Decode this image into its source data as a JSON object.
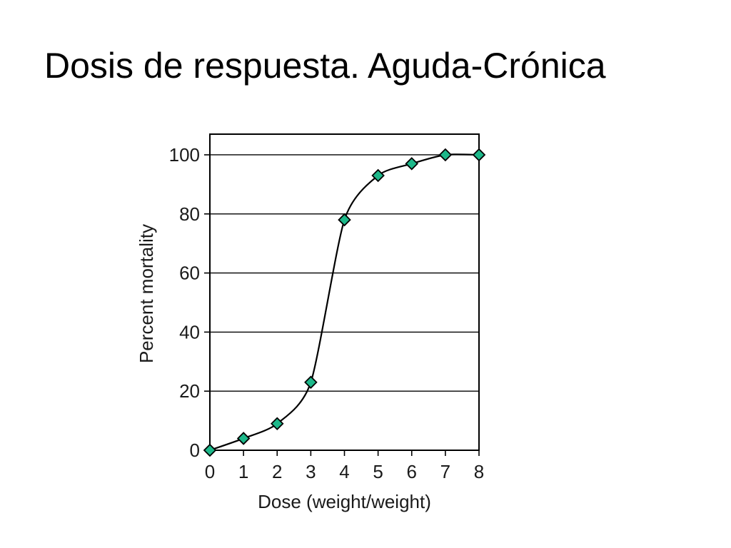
{
  "slide": {
    "title": "Dosis de respuesta. Aguda-Crónica"
  },
  "chart_data": {
    "type": "line",
    "title": "",
    "xlabel": "Dose (weight/weight)",
    "ylabel": "Percent mortality",
    "x": [
      0,
      1,
      2,
      3,
      4,
      5,
      6,
      7,
      8
    ],
    "series": [
      {
        "values": [
          0,
          4,
          9,
          23,
          78,
          93,
          97,
          100,
          100
        ]
      }
    ],
    "xlim": [
      0,
      8
    ],
    "ylim": [
      0,
      107
    ],
    "xticks": [
      "0",
      "1",
      "2",
      "3",
      "4",
      "5",
      "6",
      "7",
      "8"
    ],
    "yticks": [
      "0",
      "20",
      "40",
      "60",
      "80",
      "100"
    ],
    "grid": "horizontal",
    "legend": "none",
    "colors": {
      "marker_fill": "#1db88a",
      "line": "#000000",
      "grid": "#000000"
    },
    "marker": "diamond-icon"
  }
}
